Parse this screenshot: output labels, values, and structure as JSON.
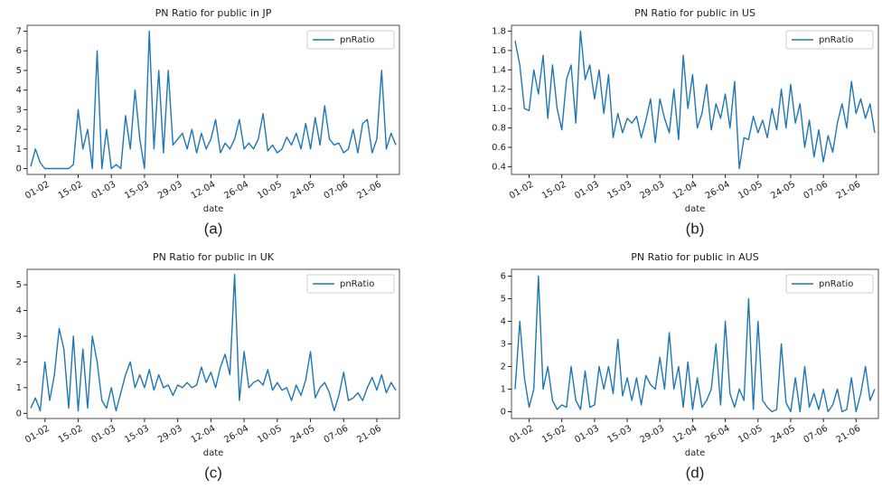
{
  "chart_data": [
    {
      "type": "line",
      "title": "PN Ratio for public in JP",
      "xlabel": "date",
      "caption": "(a)",
      "legend": "upper right",
      "x": [
        "26-01",
        "28-01",
        "30-01",
        "01-02",
        "03-02",
        "05-02",
        "07-02",
        "09-02",
        "11-02",
        "13-02",
        "15-02",
        "17-02",
        "19-02",
        "21-02",
        "23-02",
        "25-02",
        "27-02",
        "01-03",
        "03-03",
        "05-03",
        "07-03",
        "09-03",
        "11-03",
        "13-03",
        "15-03",
        "17-03",
        "19-03",
        "21-03",
        "23-03",
        "25-03",
        "27-03",
        "29-03",
        "31-03",
        "02-04",
        "04-04",
        "06-04",
        "08-04",
        "10-04",
        "12-04",
        "14-04",
        "16-04",
        "18-04",
        "20-04",
        "22-04",
        "24-04",
        "26-04",
        "28-04",
        "30-04",
        "02-05",
        "04-05",
        "06-05",
        "08-05",
        "10-05",
        "12-05",
        "14-05",
        "16-05",
        "18-05",
        "20-05",
        "22-05",
        "24-05",
        "26-05",
        "28-05",
        "30-05",
        "01-06",
        "03-06",
        "05-06",
        "07-06",
        "09-06",
        "11-06",
        "13-06",
        "15-06",
        "17-06",
        "19-06",
        "21-06",
        "23-06",
        "25-06",
        "27-06",
        "29-06"
      ],
      "xlim": [
        "26-01",
        "29-06"
      ],
      "xticks": [
        "01-02",
        "15-02",
        "01-03",
        "15-03",
        "29-03",
        "12-04",
        "26-04",
        "10-05",
        "24-05",
        "07-06",
        "21-06"
      ],
      "ylim": [
        -0.3,
        7.3
      ],
      "yticks": [
        0,
        1,
        2,
        3,
        4,
        5,
        6,
        7
      ],
      "series": [
        {
          "name": "pnRatio",
          "color": "#1f77b4",
          "values": [
            0.1,
            1.0,
            0.3,
            0,
            0,
            0,
            0,
            0,
            0,
            0.2,
            3.0,
            1.0,
            2.0,
            0,
            6.0,
            0,
            2.0,
            0,
            0.2,
            0,
            2.7,
            1.0,
            4.0,
            1.5,
            0,
            7.0,
            1.0,
            5.0,
            0.8,
            5.0,
            1.2,
            1.5,
            1.8,
            1.0,
            2.0,
            0.8,
            1.8,
            1.0,
            1.5,
            2.5,
            0.8,
            1.3,
            1.0,
            1.5,
            2.5,
            1.0,
            1.3,
            1.0,
            1.5,
            2.8,
            0.9,
            1.2,
            0.8,
            1.0,
            1.6,
            1.2,
            1.8,
            1.0,
            2.3,
            1.0,
            2.6,
            1.2,
            3.2,
            1.5,
            1.2,
            1.3,
            0.8,
            1.0,
            2.0,
            0.8,
            2.3,
            2.5,
            0.8,
            1.5,
            5.0,
            1.0,
            1.8,
            1.2
          ]
        }
      ]
    },
    {
      "type": "line",
      "title": "PN Ratio for public in US",
      "xlabel": "date",
      "caption": "(b)",
      "legend": "upper right",
      "x": [
        "26-01",
        "28-01",
        "30-01",
        "01-02",
        "03-02",
        "05-02",
        "07-02",
        "09-02",
        "11-02",
        "13-02",
        "15-02",
        "17-02",
        "19-02",
        "21-02",
        "23-02",
        "25-02",
        "27-02",
        "01-03",
        "03-03",
        "05-03",
        "07-03",
        "09-03",
        "11-03",
        "13-03",
        "15-03",
        "17-03",
        "19-03",
        "21-03",
        "23-03",
        "25-03",
        "27-03",
        "29-03",
        "31-03",
        "02-04",
        "04-04",
        "06-04",
        "08-04",
        "10-04",
        "12-04",
        "14-04",
        "16-04",
        "18-04",
        "20-04",
        "22-04",
        "24-04",
        "26-04",
        "28-04",
        "30-04",
        "02-05",
        "04-05",
        "06-05",
        "08-05",
        "10-05",
        "12-05",
        "14-05",
        "16-05",
        "18-05",
        "20-05",
        "22-05",
        "24-05",
        "26-05",
        "28-05",
        "30-05",
        "01-06",
        "03-06",
        "05-06",
        "07-06",
        "09-06",
        "11-06",
        "13-06",
        "15-06",
        "17-06",
        "19-06",
        "21-06",
        "23-06",
        "25-06",
        "27-06",
        "29-06"
      ],
      "xlim": [
        "26-01",
        "29-06"
      ],
      "xticks": [
        "01-02",
        "15-02",
        "01-03",
        "15-03",
        "29-03",
        "12-04",
        "26-04",
        "10-05",
        "24-05",
        "07-06",
        "21-06"
      ],
      "ylim": [
        0.32,
        1.86
      ],
      "yticks": [
        0.4,
        0.6,
        0.8,
        {
          "value": 1,
          "label": "1.0"
        },
        1.2,
        1.4,
        1.6,
        1.8
      ],
      "series": [
        {
          "name": "pnRatio",
          "color": "#1f77b4",
          "values": [
            1.7,
            1.45,
            1.0,
            0.98,
            1.4,
            1.15,
            1.55,
            0.9,
            1.45,
            1.0,
            0.78,
            1.3,
            1.45,
            0.85,
            1.8,
            1.3,
            1.45,
            1.1,
            1.4,
            0.95,
            1.35,
            0.7,
            0.95,
            0.75,
            0.9,
            0.85,
            0.92,
            0.7,
            0.88,
            1.1,
            0.65,
            1.1,
            0.9,
            0.75,
            1.2,
            0.68,
            1.55,
            1.0,
            1.35,
            0.8,
            0.95,
            1.25,
            0.78,
            1.05,
            0.9,
            1.15,
            0.8,
            1.28,
            0.38,
            0.7,
            0.68,
            0.92,
            0.75,
            0.88,
            0.7,
            1.0,
            0.78,
            1.2,
            0.8,
            1.25,
            0.85,
            1.05,
            0.6,
            0.88,
            0.5,
            0.78,
            0.45,
            0.72,
            0.55,
            0.85,
            1.05,
            0.8,
            1.28,
            0.95,
            1.1,
            0.9,
            1.05,
            0.75
          ]
        }
      ]
    },
    {
      "type": "line",
      "title": "PN Ratio for public in UK",
      "xlabel": "date",
      "caption": "(c)",
      "legend": "upper right",
      "x": [
        "26-01",
        "28-01",
        "30-01",
        "01-02",
        "03-02",
        "05-02",
        "07-02",
        "09-02",
        "11-02",
        "13-02",
        "15-02",
        "17-02",
        "19-02",
        "21-02",
        "23-02",
        "25-02",
        "27-02",
        "01-03",
        "03-03",
        "05-03",
        "07-03",
        "09-03",
        "11-03",
        "13-03",
        "15-03",
        "17-03",
        "19-03",
        "21-03",
        "23-03",
        "25-03",
        "27-03",
        "29-03",
        "31-03",
        "02-04",
        "04-04",
        "06-04",
        "08-04",
        "10-04",
        "12-04",
        "14-04",
        "16-04",
        "18-04",
        "20-04",
        "22-04",
        "24-04",
        "26-04",
        "28-04",
        "30-04",
        "02-05",
        "04-05",
        "06-05",
        "08-05",
        "10-05",
        "12-05",
        "14-05",
        "16-05",
        "18-05",
        "20-05",
        "22-05",
        "24-05",
        "26-05",
        "28-05",
        "30-05",
        "01-06",
        "03-06",
        "05-06",
        "07-06",
        "09-06",
        "11-06",
        "13-06",
        "15-06",
        "17-06",
        "19-06",
        "21-06",
        "23-06",
        "25-06",
        "27-06",
        "29-06"
      ],
      "xlim": [
        "26-01",
        "29-06"
      ],
      "xticks": [
        "01-02",
        "15-02",
        "01-03",
        "15-03",
        "29-03",
        "12-04",
        "26-04",
        "10-05",
        "24-05",
        "07-06",
        "21-06"
      ],
      "ylim": [
        -0.2,
        5.6
      ],
      "yticks": [
        0,
        1,
        2,
        3,
        4,
        5
      ],
      "series": [
        {
          "name": "pnRatio",
          "color": "#1f77b4",
          "values": [
            0.2,
            0.6,
            0.1,
            2.0,
            0.5,
            1.5,
            3.3,
            2.5,
            0.2,
            3.0,
            0.1,
            2.5,
            0.2,
            3.0,
            2.0,
            0.5,
            0.2,
            1.0,
            0.1,
            0.8,
            1.5,
            2.0,
            1.0,
            1.5,
            1.0,
            1.7,
            0.9,
            1.5,
            1.0,
            1.1,
            0.7,
            1.1,
            1.0,
            1.2,
            1.0,
            1.1,
            1.8,
            1.2,
            1.6,
            1.0,
            1.8,
            2.3,
            1.5,
            5.4,
            0.5,
            2.4,
            1.0,
            1.2,
            1.3,
            1.1,
            1.7,
            0.9,
            1.2,
            0.9,
            1.0,
            0.5,
            1.1,
            0.7,
            1.3,
            2.4,
            0.6,
            1.0,
            1.2,
            0.8,
            0.1,
            0.7,
            1.6,
            0.5,
            0.6,
            0.8,
            0.5,
            1.0,
            1.4,
            0.9,
            1.5,
            0.8,
            1.2,
            0.9
          ]
        }
      ]
    },
    {
      "type": "line",
      "title": "PN Ratio for public in AUS",
      "xlabel": "date",
      "caption": "(d)",
      "legend": "upper right",
      "x": [
        "26-01",
        "28-01",
        "30-01",
        "01-02",
        "03-02",
        "05-02",
        "07-02",
        "09-02",
        "11-02",
        "13-02",
        "15-02",
        "17-02",
        "19-02",
        "21-02",
        "23-02",
        "25-02",
        "27-02",
        "01-03",
        "03-03",
        "05-03",
        "07-03",
        "09-03",
        "11-03",
        "13-03",
        "15-03",
        "17-03",
        "19-03",
        "21-03",
        "23-03",
        "25-03",
        "27-03",
        "29-03",
        "31-03",
        "02-04",
        "04-04",
        "06-04",
        "08-04",
        "10-04",
        "12-04",
        "14-04",
        "16-04",
        "18-04",
        "20-04",
        "22-04",
        "24-04",
        "26-04",
        "28-04",
        "30-04",
        "02-05",
        "04-05",
        "06-05",
        "08-05",
        "10-05",
        "12-05",
        "14-05",
        "16-05",
        "18-05",
        "20-05",
        "22-05",
        "24-05",
        "26-05",
        "28-05",
        "30-05",
        "01-06",
        "03-06",
        "05-06",
        "07-06",
        "09-06",
        "11-06",
        "13-06",
        "15-06",
        "17-06",
        "19-06",
        "21-06",
        "23-06",
        "25-06",
        "27-06",
        "29-06"
      ],
      "xlim": [
        "26-01",
        "29-06"
      ],
      "xticks": [
        "01-02",
        "15-02",
        "01-03",
        "15-03",
        "29-03",
        "12-04",
        "26-04",
        "10-05",
        "24-05",
        "07-06",
        "21-06"
      ],
      "ylim": [
        -0.3,
        6.3
      ],
      "yticks": [
        0,
        1,
        2,
        3,
        4,
        5,
        6
      ],
      "series": [
        {
          "name": "pnRatio",
          "color": "#1f77b4",
          "values": [
            1.0,
            4.0,
            1.5,
            0.2,
            1.0,
            6.0,
            1.0,
            2.0,
            0.5,
            0.1,
            0.3,
            0.2,
            2.0,
            0.5,
            0.1,
            1.8,
            0.2,
            0.3,
            2.0,
            1.0,
            2.0,
            0.8,
            3.2,
            0.7,
            1.5,
            0.5,
            1.5,
            0.3,
            1.6,
            1.2,
            1.0,
            2.4,
            1.0,
            3.5,
            1.0,
            2.0,
            0.2,
            2.2,
            0.1,
            1.5,
            0.2,
            0.5,
            1.0,
            3.0,
            0.3,
            4.0,
            0.8,
            0.2,
            1.0,
            0.5,
            5.0,
            0.1,
            4.0,
            0.5,
            0.2,
            0.0,
            0.1,
            3.0,
            0.4,
            0.0,
            1.5,
            0.0,
            2.0,
            0.2,
            0.8,
            0.1,
            1.0,
            0.0,
            0.3,
            1.0,
            0.0,
            0.1,
            1.5,
            0.0,
            0.8,
            2.0,
            0.5,
            1.0
          ]
        }
      ]
    }
  ]
}
